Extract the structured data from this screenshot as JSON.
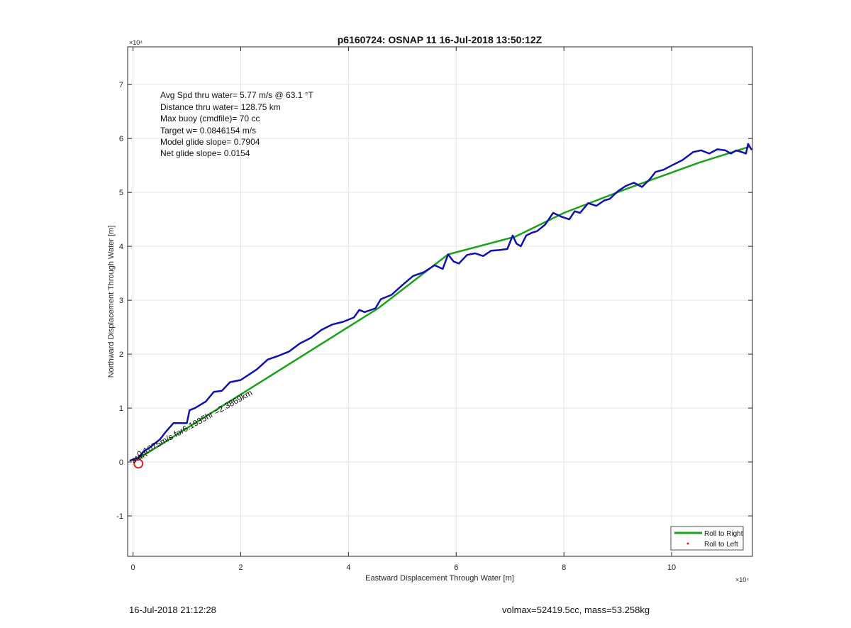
{
  "chart_data": {
    "type": "line",
    "title": "p6160724: OSNAP 11 16-Jul-2018 13:50:12Z",
    "xlabel": "Eastward Displacement Through Water [m]",
    "ylabel": "Northward Displacement Through Water [m]",
    "x_exponent_label": "×10⁴",
    "y_exponent_label": "×10⁴",
    "xlim": [
      -0.1,
      11.5
    ],
    "ylim": [
      -1.75,
      7.7
    ],
    "xticks": [
      0,
      2,
      4,
      6,
      8,
      10
    ],
    "yticks": [
      -1,
      0,
      1,
      2,
      3,
      4,
      5,
      6,
      7
    ],
    "grid": true,
    "legend_position": "bottom-right",
    "series": [
      {
        "name": "Roll to Right",
        "color": "#1aa31a",
        "x": [
          0.0,
          4.55,
          5.85,
          7.1,
          8.0,
          9.2,
          10.5,
          11.45
        ],
        "y": [
          0.0,
          2.85,
          3.85,
          4.18,
          4.62,
          5.08,
          5.55,
          5.85
        ]
      },
      {
        "name": "Roll to Left",
        "color": "#e02020",
        "x": [
          0.1
        ],
        "y": [
          -0.03
        ]
      },
      {
        "name": "",
        "color": "#1010b0",
        "x": [
          -0.05,
          0.1,
          0.2,
          0.3,
          0.5,
          0.6,
          0.75,
          1.0,
          1.05,
          1.15,
          1.35,
          1.5,
          1.65,
          1.8,
          2.0,
          2.3,
          2.5,
          2.7,
          2.9,
          3.1,
          3.3,
          3.5,
          3.7,
          3.9,
          4.1,
          4.2,
          4.3,
          4.5,
          4.6,
          4.8,
          5.0,
          5.2,
          5.4,
          5.6,
          5.75,
          5.85,
          5.95,
          6.05,
          6.2,
          6.35,
          6.5,
          6.65,
          6.8,
          6.95,
          7.05,
          7.12,
          7.2,
          7.3,
          7.4,
          7.5,
          7.65,
          7.8,
          7.95,
          8.1,
          8.2,
          8.3,
          8.45,
          8.6,
          8.75,
          8.85,
          9.0,
          9.15,
          9.3,
          9.45,
          9.6,
          9.7,
          9.85,
          10.0,
          10.2,
          10.4,
          10.55,
          10.7,
          10.85,
          11.0,
          11.1,
          11.2,
          11.3,
          11.38,
          11.42,
          11.45,
          11.48
        ],
        "y": [
          0.03,
          0.08,
          0.2,
          0.26,
          0.42,
          0.55,
          0.72,
          0.72,
          0.96,
          1.0,
          1.12,
          1.3,
          1.32,
          1.48,
          1.52,
          1.72,
          1.9,
          1.97,
          2.05,
          2.2,
          2.3,
          2.45,
          2.55,
          2.6,
          2.68,
          2.82,
          2.78,
          2.85,
          3.02,
          3.1,
          3.28,
          3.45,
          3.52,
          3.65,
          3.58,
          3.85,
          3.72,
          3.68,
          3.84,
          3.87,
          3.82,
          3.92,
          3.93,
          3.95,
          4.2,
          4.05,
          4.0,
          4.2,
          4.25,
          4.28,
          4.4,
          4.62,
          4.55,
          4.5,
          4.65,
          4.62,
          4.8,
          4.75,
          4.85,
          4.88,
          5.02,
          5.12,
          5.18,
          5.1,
          5.25,
          5.38,
          5.42,
          5.5,
          5.6,
          5.75,
          5.78,
          5.72,
          5.8,
          5.78,
          5.72,
          5.78,
          5.75,
          5.72,
          5.9,
          5.85,
          5.8
        ]
      }
    ],
    "annotations": [
      "Avg Spd thru water=  5.77 m/s @  63.1 °T",
      "Distance thru water= 128.75 km",
      "Max buoy (cmdfile)= 70 cc",
      "Target w= 0.0846154 m/s",
      "Model glide slope= 0.7904",
      "Net glide slope= 0.0154"
    ],
    "current_label": "0.1075m/s for6.1935hr =2.3869km",
    "start_label": "start"
  },
  "footer": {
    "timestamp": "16-Jul-2018 21:12:28",
    "summary": "volmax=52419.5cc, mass=53.258kg"
  }
}
